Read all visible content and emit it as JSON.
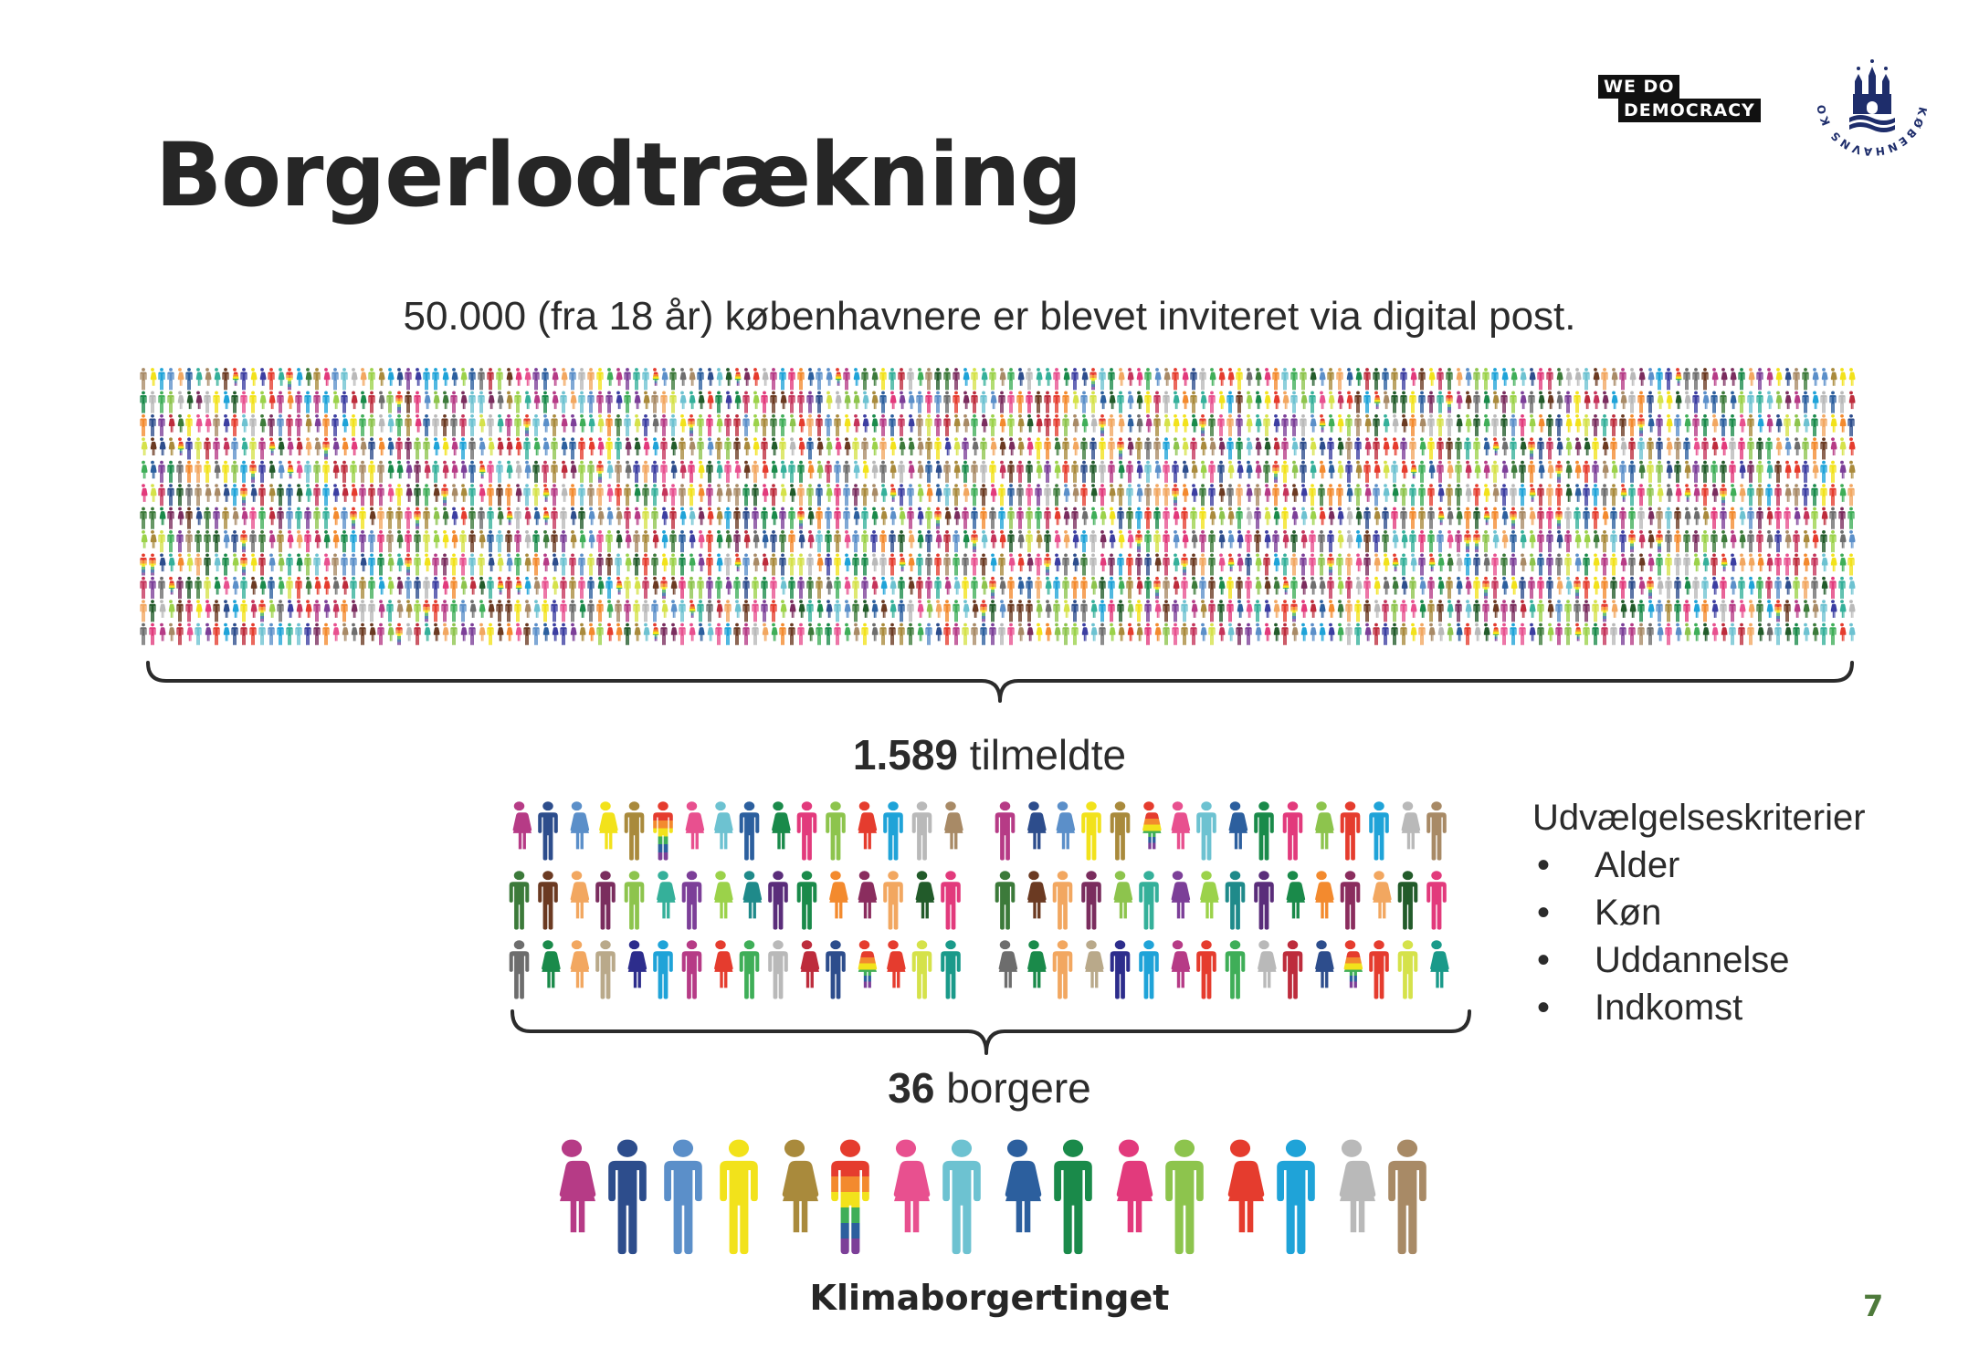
{
  "title": "Borgerlodtrækning",
  "subtitle": "50.000 (fra 18 år) københavnere er blevet inviteret via digital post.",
  "registered": {
    "number": "1.589",
    "label": "tilmeldte"
  },
  "selected": {
    "number": "36",
    "label": "borgere"
  },
  "criteria": {
    "heading": "Udvælgelseskriterier",
    "items": [
      "Alder",
      "Køn",
      "Uddannelse",
      "Indkomst"
    ]
  },
  "group_name": "Klimaborgertinget",
  "page_number": "7",
  "logos": {
    "wdd": {
      "line1": "WE DO",
      "line2": "DEMOCRACY"
    },
    "kk": {
      "text": "KØBENHAVNS KOMMUNE"
    }
  },
  "palette": [
    "#b63b86",
    "#2d4d8c",
    "#5b8fc9",
    "#f2e21b",
    "#a98a3c",
    "rainbow",
    "#e8508f",
    "#6dc2d1",
    "#2c5f9e",
    "#1a8a4a",
    "#e23a7c",
    "#8dc44d",
    "#e53c2e",
    "#1fa3d8",
    "#b9b9b9",
    "#a88a66",
    "#3c7a3a",
    "#6b3a22",
    "#f2a760",
    "#7a2d5e",
    "#35b09a",
    "#7c3f98",
    "#f38a2e",
    "#9bd24a",
    "#225b2a",
    "#c5345b",
    "#6d6d6d",
    "#3fae58",
    "#bd2c3c",
    "#3c3ea1",
    "#d5e24a"
  ],
  "crowd_rows": [
    [
      "#b63b86",
      "#2d4d8c",
      "#5b8fc9",
      "#f2e21b",
      "#a98a3c",
      "rainbow",
      "#e8508f",
      "#6dc2d1",
      "#2c5f9e",
      "#1a8a4a",
      "#e23a7c",
      "#8dc44d",
      "#e53c2e",
      "#1fa3d8",
      "#b9b9b9",
      "#a88a66",
      "#b63b86",
      "#2d4d8c",
      "#5b8fc9",
      "#f2e21b",
      "#a98a3c",
      "rainbow",
      "#e8508f",
      "#6dc2d1",
      "#2c5f9e",
      "#1a8a4a",
      "#e23a7c",
      "#8dc44d",
      "#e53c2e",
      "#1fa3d8",
      "#b9b9b9",
      "#a88a66"
    ],
    [
      "#3c7a3a",
      "#6b3a22",
      "#f2a760",
      "#7a2d5e",
      "#8dc44d",
      "#35b09a",
      "#7c3f98",
      "#9bd24a",
      "#1f8a8a",
      "#5a2d7a",
      "#1a8a4a",
      "#f38a2e",
      "#8a2d5e",
      "#f2a760",
      "#225b2a",
      "#e23a7c",
      "#3c7a3a",
      "#6b3a22",
      "#f2a760",
      "#7a2d5e",
      "#8dc44d",
      "#35b09a",
      "#7c3f98",
      "#9bd24a",
      "#1f8a8a",
      "#5a2d7a",
      "#1a8a4a",
      "#f38a2e",
      "#8a2d5e",
      "#f2a760",
      "#225b2a",
      "#e23a7c"
    ],
    [
      "#6d6d6d",
      "#1a8a4a",
      "#f2a760",
      "#b9a98a",
      "#2d2d8c",
      "#1fa3d8",
      "#b63b86",
      "#e53c2e",
      "#3fae58",
      "#b9b9b9",
      "#bd2c3c",
      "#2d4d8c",
      "rainbow",
      "#e53c2e",
      "#d5e24a",
      "#1a9a8a",
      "#6d6d6d",
      "#1a8a4a",
      "#f2a760",
      "#b9a98a",
      "#2d2d8c",
      "#1fa3d8",
      "#b63b86",
      "#e53c2e",
      "#3fae58",
      "#b9b9b9",
      "#bd2c3c",
      "#2d4d8c",
      "rainbow",
      "#e53c2e",
      "#d5e24a",
      "#1a9a8a"
    ]
  ],
  "selected_colors": [
    "#b63b86",
    "#2d4d8c",
    "#5b8fc9",
    "#f2e21b",
    "#a98a3c",
    "rainbow",
    "#e8508f",
    "#6dc2d1",
    "#2c5f9e",
    "#1a8a4a",
    "#e23a7c",
    "#8dc44d",
    "#e53c2e",
    "#1fa3d8",
    "#b9b9b9",
    "#a88a66"
  ]
}
